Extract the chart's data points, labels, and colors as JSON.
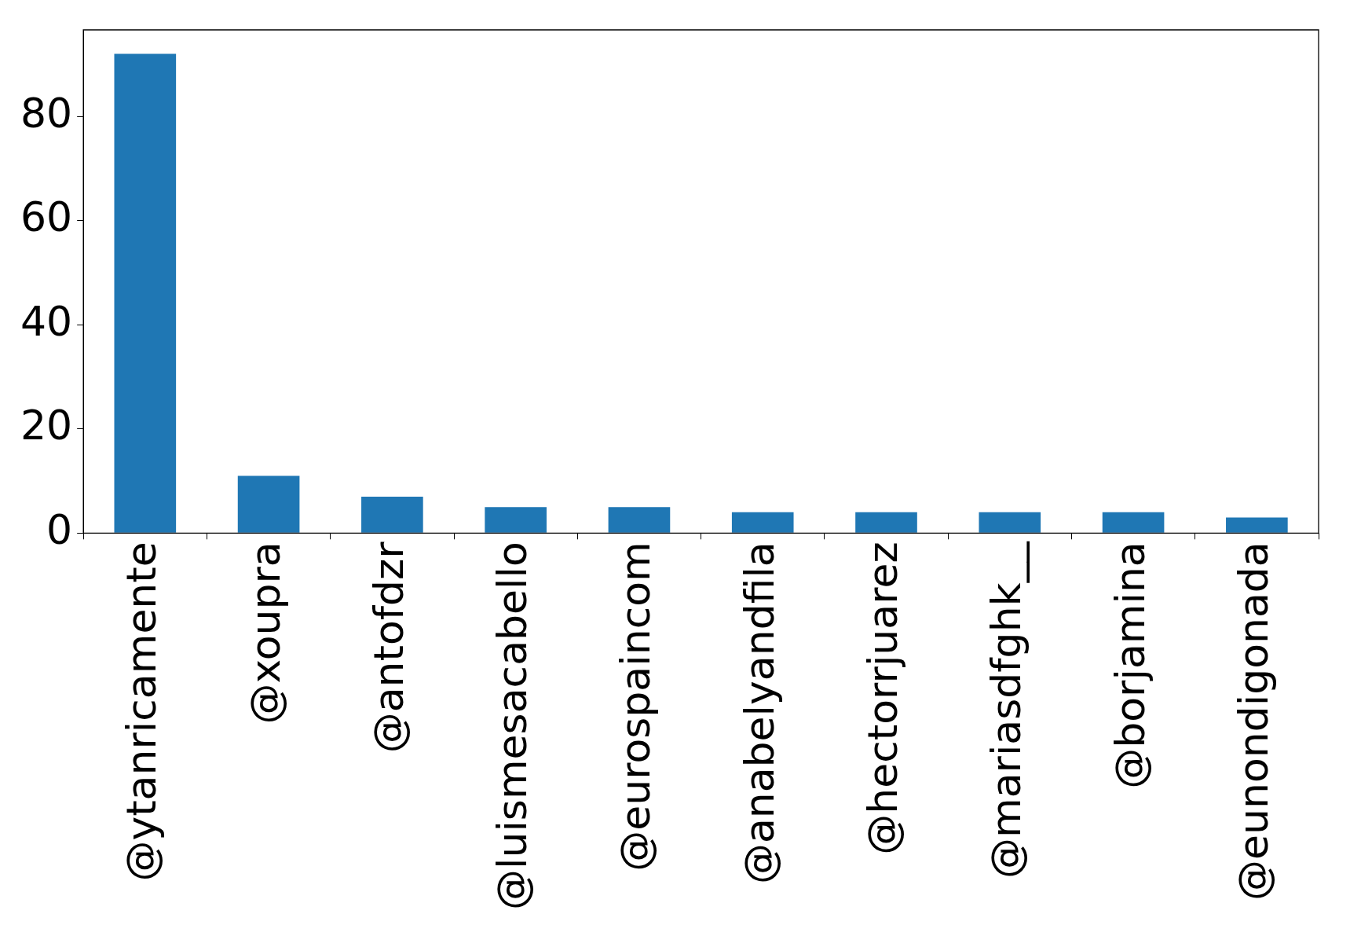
{
  "chart_data": {
    "type": "bar",
    "categories": [
      "@ytanricamente",
      "@xoupra",
      "@antofdzr",
      "@luismesacabello",
      "@eurospaincom",
      "@anabelyandfila",
      "@hectorrjuarez",
      "@mariasdfghk__",
      "@borjamina",
      "@eunondigonada"
    ],
    "values": [
      92,
      11,
      7,
      5,
      5,
      4,
      4,
      4,
      4,
      3
    ],
    "color": "#1f77b4",
    "ylim": [
      0,
      96.6
    ],
    "yticks": [
      0,
      20,
      40,
      60,
      80
    ],
    "grid": false,
    "legend": false
  }
}
